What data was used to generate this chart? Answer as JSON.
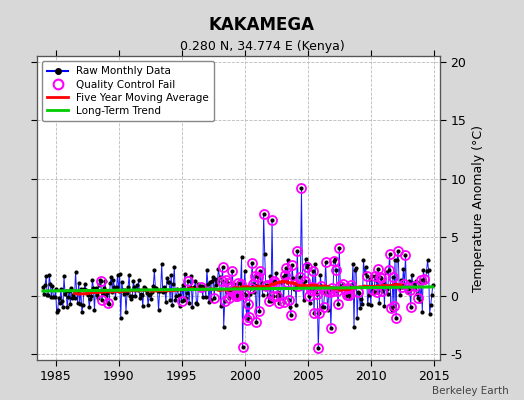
{
  "title": "KAKAMEGA",
  "subtitle": "0.280 N, 34.774 E (Kenya)",
  "ylabel": "Temperature Anomaly (°C)",
  "watermark": "Berkeley Earth",
  "xlim": [
    1983.5,
    2015.5
  ],
  "ylim": [
    -5.5,
    20.5
  ],
  "yticks": [
    -5,
    0,
    5,
    10,
    15,
    20
  ],
  "xticks": [
    1985,
    1990,
    1995,
    2000,
    2005,
    2010,
    2015
  ],
  "raw_color": "#0000ff",
  "qc_color": "#ff00ff",
  "ma_color": "#ff0000",
  "trend_color": "#00cc00",
  "bg_color": "#d8d8d8",
  "plot_bg": "#ffffff",
  "legend_labels": [
    "Raw Monthly Data",
    "Quality Control Fail",
    "Five Year Moving Average",
    "Long-Term Trend"
  ],
  "seed": 42,
  "figsize": [
    5.24,
    4.0
  ],
  "dpi": 100
}
